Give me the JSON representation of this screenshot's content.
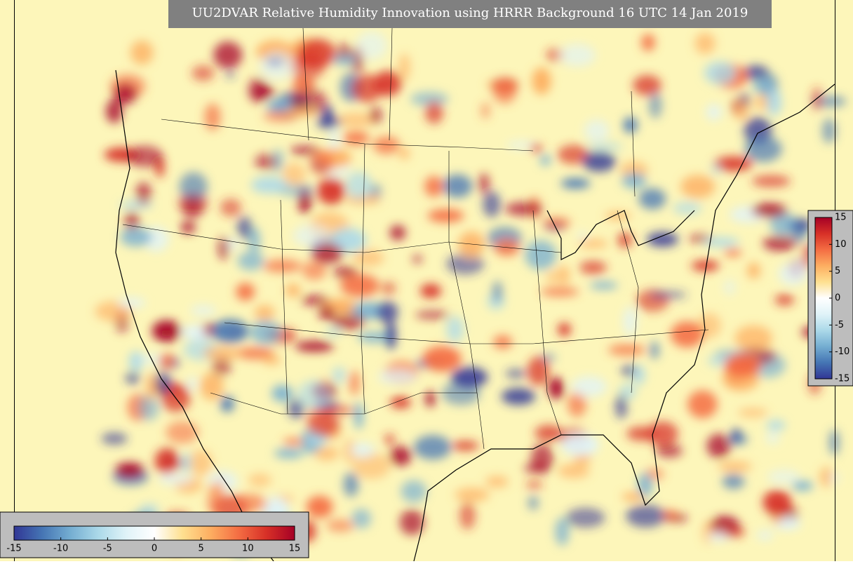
{
  "map": {
    "title": "UU2DVAR Relative Humidity Innovation using HRRR Background 16 UTC 14 Jan 2019",
    "colors": [
      "#313695",
      "#4575b4",
      "#74add1",
      "#abd9e9",
      "#e0f3f8",
      "#ffffff",
      "#fee090",
      "#fdae61",
      "#f46d43",
      "#d73027",
      "#a50026"
    ],
    "colorbars": [
      {
        "orientation": "horizontal",
        "lim": [
          -15,
          15
        ],
        "ticks": [
          -15,
          -10,
          -5,
          0,
          5,
          10,
          15
        ]
      },
      {
        "orientation": "vertical",
        "lim": [
          -15,
          15
        ],
        "ticks": [
          -15,
          -10,
          -5,
          0,
          5,
          10,
          15
        ]
      }
    ]
  }
}
